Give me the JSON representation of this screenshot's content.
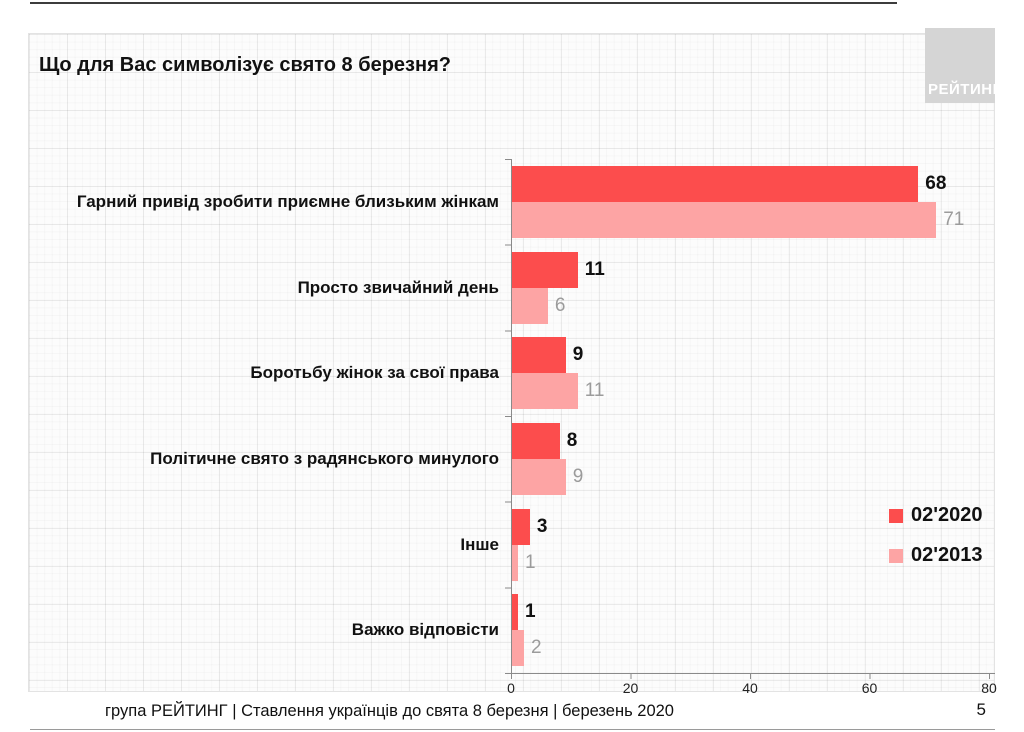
{
  "page": {
    "logo_text": "РЕЙТИНГ",
    "footer": "група РЕЙТИНГ | Ставлення українців до свята 8 березня  | березень 2020",
    "page_number": "5"
  },
  "colors": {
    "series_2020": "#fc4d4d",
    "series_2013": "#fda4a4",
    "value_label_2013": "#9b9b9b",
    "logo_background": "#d5d5d5",
    "axis": "#8a8a8a"
  },
  "chart_data": {
    "type": "bar",
    "orientation": "horizontal",
    "title": "Що для Вас символізує свято 8 березня?",
    "categories": [
      "Гарний привід зробити приємне близьким жінкам",
      "Просто звичайний день",
      "Боротьбу жінок за свої права",
      "Політичне свято з радянського минулого",
      "Інше",
      "Важко відповісти"
    ],
    "series": [
      {
        "name": "02'2020",
        "color": "#fc4d4d",
        "values": [
          68,
          11,
          9,
          8,
          3,
          1
        ]
      },
      {
        "name": "02'2013",
        "color": "#fda4a4",
        "values": [
          71,
          6,
          11,
          9,
          1,
          2
        ]
      }
    ],
    "xlim": [
      0,
      80
    ],
    "x_ticks": [
      0,
      20,
      40,
      60,
      80
    ],
    "xlabel": "",
    "ylabel": "",
    "grid": true,
    "legend_position": "right-middle",
    "value_labels": true
  }
}
